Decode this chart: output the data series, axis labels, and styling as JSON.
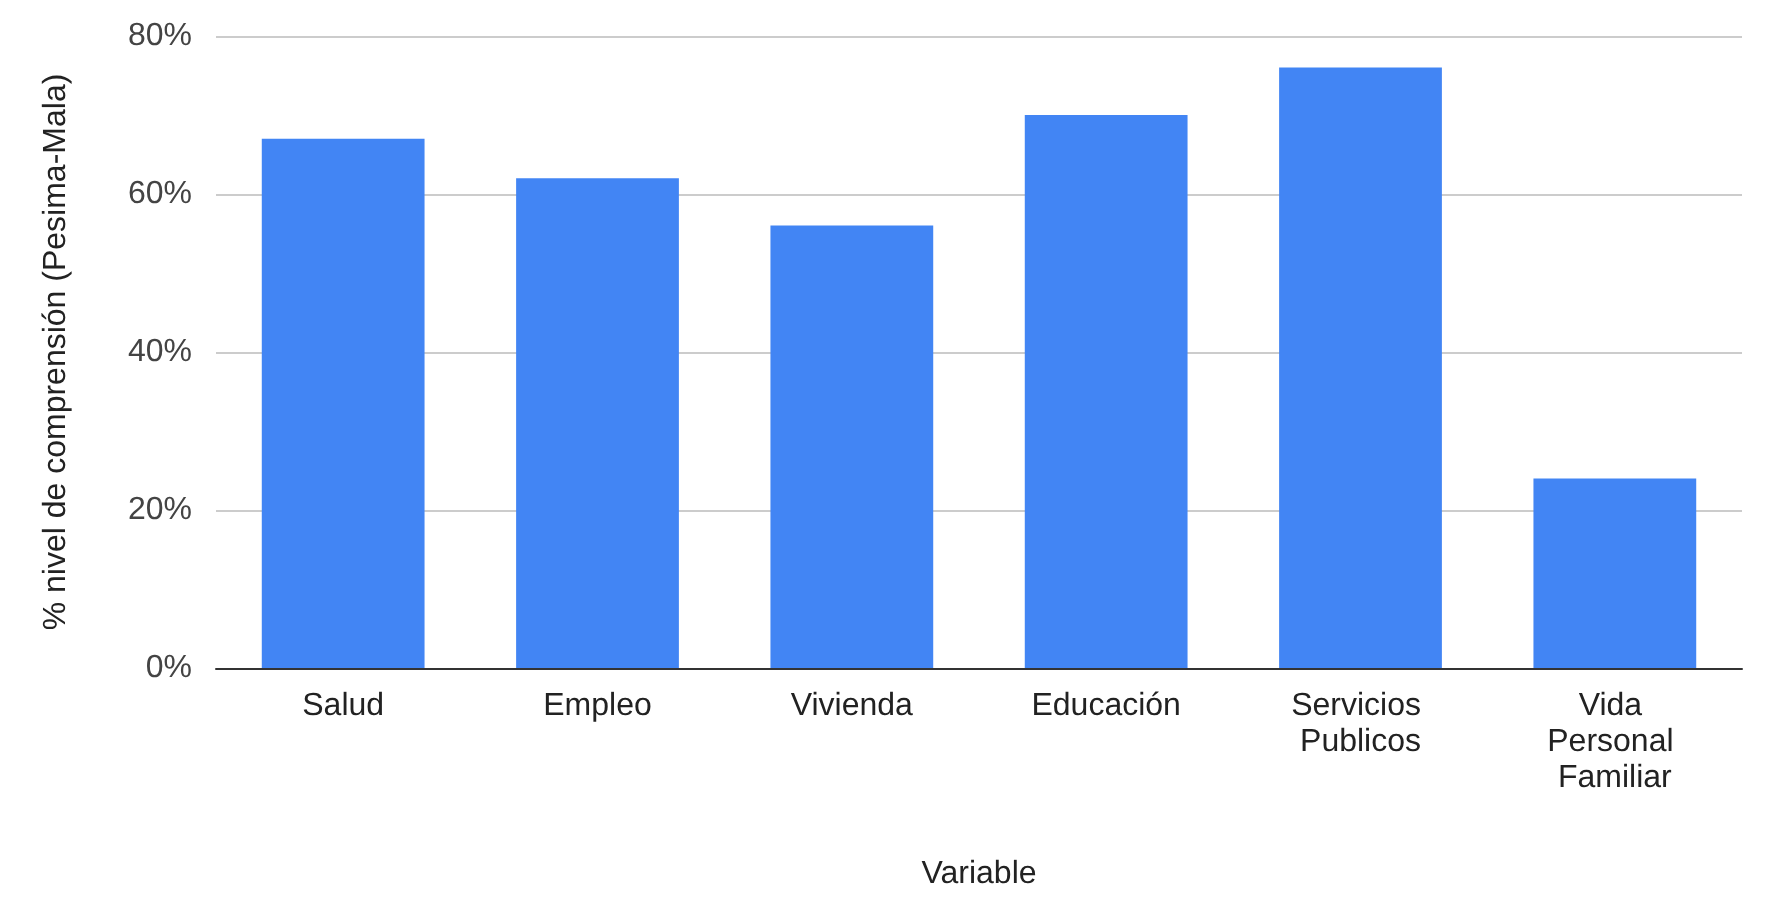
{
  "chart_data": {
    "type": "bar",
    "xlabel": "Variable",
    "ylabel": "% nivel de comprensión (Pesima-Mala)",
    "categories": [
      "Salud",
      "Empleo",
      "Vivienda",
      "Educación",
      "Servicios Publicos",
      "Vida Personal Familiar"
    ],
    "values": [
      67,
      62,
      56,
      70,
      76,
      24
    ],
    "color": "#4285f4",
    "ylim": [
      0,
      80
    ],
    "yticks": [
      {
        "value": 0,
        "label": "0%"
      },
      {
        "value": 20,
        "label": "20%"
      },
      {
        "value": 40,
        "label": "40%"
      },
      {
        "value": 60,
        "label": "60%"
      },
      {
        "value": 80,
        "label": "80%"
      }
    ],
    "grid": "y"
  }
}
